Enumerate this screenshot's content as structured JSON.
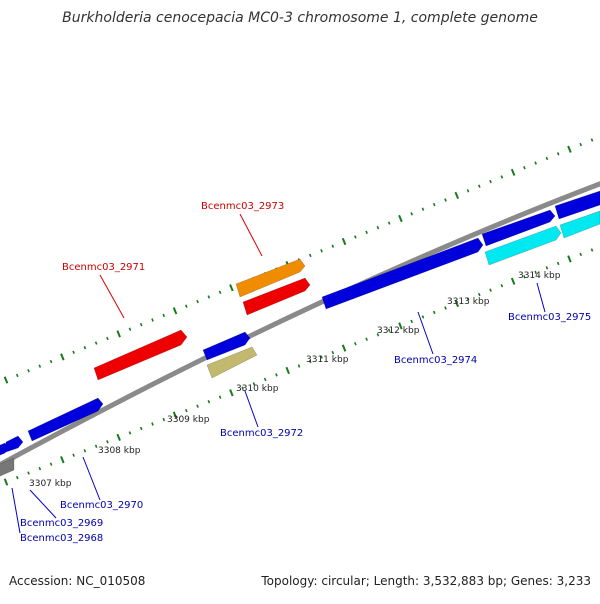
{
  "header": {
    "title": "Burkholderia cenocepacia MC0-3 chromosome 1, complete genome"
  },
  "footer": {
    "accession": "Accession: NC_010508",
    "summary": "Topology: circular; Length: 3,532,883 bp; Genes: 3,233"
  },
  "colors": {
    "backbone": "#8a8a8a",
    "tick": "#1a7a1a",
    "gene_label_forward": "#cc0000",
    "gene_label_reverse": "#0000aa",
    "leader_line_forward": "#dd0000",
    "leader_line_reverse": "#0000cc",
    "scale_text": "#222222"
  },
  "scale_labels": [
    "3307 kbp",
    "3308 kbp",
    "3309 kbp",
    "3310 kbp",
    "3311 kbp",
    "3312 kbp",
    "3313 kbp",
    "3314 kbp"
  ],
  "features": [
    {
      "name": "feature-gray-left",
      "color": "#777777",
      "strand": "reverse"
    },
    {
      "name": "feature-blue-edge-upper",
      "color": "#0000dd",
      "strand": "forward"
    },
    {
      "name": "feature-blue-small",
      "color": "#0000dd",
      "strand": "forward"
    },
    {
      "name": "feature-blue-3308",
      "color": "#0000dd",
      "strand": "forward"
    },
    {
      "name": "feature-red-2971",
      "color": "#ee0000",
      "strand": "forward"
    },
    {
      "name": "feature-blue-2972",
      "color": "#0000dd",
      "strand": "forward"
    },
    {
      "name": "feature-khaki-2972",
      "color": "#c2b86e",
      "strand": "reverse"
    },
    {
      "name": "feature-orange-2973",
      "color": "#f08c00",
      "strand": "forward"
    },
    {
      "name": "feature-red-2973",
      "color": "#ee0000",
      "strand": "forward"
    },
    {
      "name": "feature-blue-2974",
      "color": "#0000dd",
      "strand": "forward"
    },
    {
      "name": "feature-blue-upper-right",
      "color": "#0000dd",
      "strand": "forward"
    },
    {
      "name": "feature-blue-edge-right",
      "color": "#0000dd",
      "strand": "forward"
    },
    {
      "name": "feature-cyan-2975",
      "color": "#00e8f0",
      "strand": "forward"
    },
    {
      "name": "feature-cyan-edge-right",
      "color": "#00e8f0",
      "strand": "forward"
    }
  ],
  "gene_labels": [
    {
      "text": "Bcenmc03_2973",
      "strand": "forward"
    },
    {
      "text": "Bcenmc03_2971",
      "strand": "forward"
    },
    {
      "text": "Bcenmc03_2975",
      "strand": "reverse"
    },
    {
      "text": "Bcenmc03_2974",
      "strand": "reverse"
    },
    {
      "text": "Bcenmc03_2972",
      "strand": "reverse"
    },
    {
      "text": "Bcenmc03_2970",
      "strand": "reverse"
    },
    {
      "text": "Bcenmc03_2969",
      "strand": "reverse"
    },
    {
      "text": "Bcenmc03_2968",
      "strand": "reverse"
    }
  ]
}
